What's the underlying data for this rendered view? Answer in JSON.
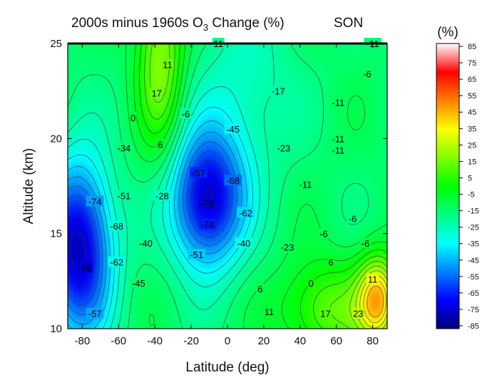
{
  "chart_data": {
    "type": "heatmap",
    "title": {
      "prefix": "2000s minus 1960s O",
      "subscript": "3",
      "suffix": " Change (%)",
      "season": "SON"
    },
    "xlabel": "Latitude (deg)",
    "ylabel": "Altitude (km)",
    "xlim": [
      -88,
      88
    ],
    "ylim": [
      10,
      25
    ],
    "xticks": [
      -80,
      -60,
      -40,
      -20,
      0,
      20,
      40,
      60,
      80
    ],
    "yticks": [
      10,
      15,
      20,
      25
    ],
    "colorbar": {
      "unit": "(%)",
      "range": [
        -85,
        85
      ],
      "ticks": [
        85,
        75,
        65,
        55,
        45,
        35,
        25,
        15,
        5,
        -5,
        -15,
        -25,
        -35,
        -45,
        -55,
        -65,
        -75,
        -85
      ]
    },
    "features": [
      {
        "name": "min-south",
        "x": -82,
        "y": 14.2,
        "value": -84,
        "sx": 13,
        "sy": 3.2
      },
      {
        "name": "min-tropics",
        "x": -11,
        "y": 16.8,
        "value": -82,
        "sx": 14,
        "sy": 2.5
      },
      {
        "name": "max-south-upper",
        "x": -37,
        "y": 24.5,
        "value": 22,
        "sx": 9,
        "sy": 3.5
      },
      {
        "name": "max-north-lower",
        "x": 83,
        "y": 11.5,
        "value": 45,
        "sx": 8,
        "sy": 1.6
      },
      {
        "name": "max-mid-lower",
        "x": 55,
        "y": 11.0,
        "value": 15,
        "sx": 18,
        "sy": 1.8
      },
      {
        "name": "low-mid-upper",
        "x": 10,
        "y": 22.5,
        "value": -28,
        "sx": 18,
        "sy": 3.5
      }
    ],
    "contour_labels": [
      {
        "text": "11",
        "lat": -5,
        "alt": 25.0
      },
      {
        "text": "11",
        "lat": -33,
        "alt": 23.9
      },
      {
        "text": "-11",
        "lat": 80,
        "alt": 25.0
      },
      {
        "text": "-6",
        "lat": 77,
        "alt": 23.4
      },
      {
        "text": "17",
        "lat": -39,
        "alt": 22.4
      },
      {
        "text": "-17",
        "lat": 28,
        "alt": 22.5
      },
      {
        "text": "0",
        "lat": -52,
        "alt": 21.1
      },
      {
        "text": "-6",
        "lat": -23,
        "alt": 21.3
      },
      {
        "text": "-11",
        "lat": 61,
        "alt": 21.9
      },
      {
        "text": "6",
        "lat": -37,
        "alt": 19.7
      },
      {
        "text": "-45",
        "lat": 3,
        "alt": 20.5
      },
      {
        "text": "-11",
        "lat": 61,
        "alt": 20.0
      },
      {
        "text": "-11",
        "lat": 61,
        "alt": 19.4
      },
      {
        "text": "-34",
        "lat": -57,
        "alt": 19.5
      },
      {
        "text": "-23",
        "lat": 31,
        "alt": 19.5
      },
      {
        "text": "-57",
        "lat": -16,
        "alt": 18.2
      },
      {
        "text": "-68",
        "lat": 3,
        "alt": 17.8
      },
      {
        "text": "-11",
        "lat": 43,
        "alt": 17.6
      },
      {
        "text": "-51",
        "lat": -57,
        "alt": 17.0
      },
      {
        "text": "-28",
        "lat": -36,
        "alt": 17.0
      },
      {
        "text": "-74",
        "lat": -73,
        "alt": 16.7
      },
      {
        "text": "-79",
        "lat": -11,
        "alt": 16.6
      },
      {
        "text": "-62",
        "lat": 10,
        "alt": 16.1
      },
      {
        "text": "-6",
        "lat": 69,
        "alt": 15.8
      },
      {
        "text": "-68",
        "lat": -61,
        "alt": 15.4
      },
      {
        "text": "-74",
        "lat": -11,
        "alt": 15.5
      },
      {
        "text": "-6",
        "lat": 53,
        "alt": 15.0
      },
      {
        "text": "-40",
        "lat": -45,
        "alt": 14.5
      },
      {
        "text": "-40",
        "lat": 9,
        "alt": 14.5
      },
      {
        "text": "-23",
        "lat": 33,
        "alt": 14.3
      },
      {
        "text": "-6",
        "lat": 76,
        "alt": 14.5
      },
      {
        "text": "-51",
        "lat": -17,
        "alt": 13.9
      },
      {
        "text": "-62",
        "lat": -61,
        "alt": 13.5
      },
      {
        "text": "6",
        "lat": 57,
        "alt": 13.5
      },
      {
        "text": "-79",
        "lat": -79,
        "alt": 13.2
      },
      {
        "text": "-45",
        "lat": -49,
        "alt": 12.4
      },
      {
        "text": "0",
        "lat": 46,
        "alt": 12.4
      },
      {
        "text": "11",
        "lat": 80,
        "alt": 12.6
      },
      {
        "text": "6",
        "lat": 18,
        "alt": 12.1
      },
      {
        "text": "-57",
        "lat": -73,
        "alt": 10.8
      },
      {
        "text": "11",
        "lat": 23,
        "alt": 10.9
      },
      {
        "text": "17",
        "lat": 54,
        "alt": 10.8
      },
      {
        "text": "23",
        "lat": 72,
        "alt": 10.8
      }
    ]
  },
  "colors": {
    "stops": [
      "#000078",
      "#0000ff",
      "#0080ff",
      "#00ffff",
      "#00ff80",
      "#00ff00",
      "#80ff00",
      "#ffff00",
      "#ff8000",
      "#ff0000",
      "#ffffff"
    ],
    "frame": "#000000",
    "contour_line": "#333333"
  }
}
